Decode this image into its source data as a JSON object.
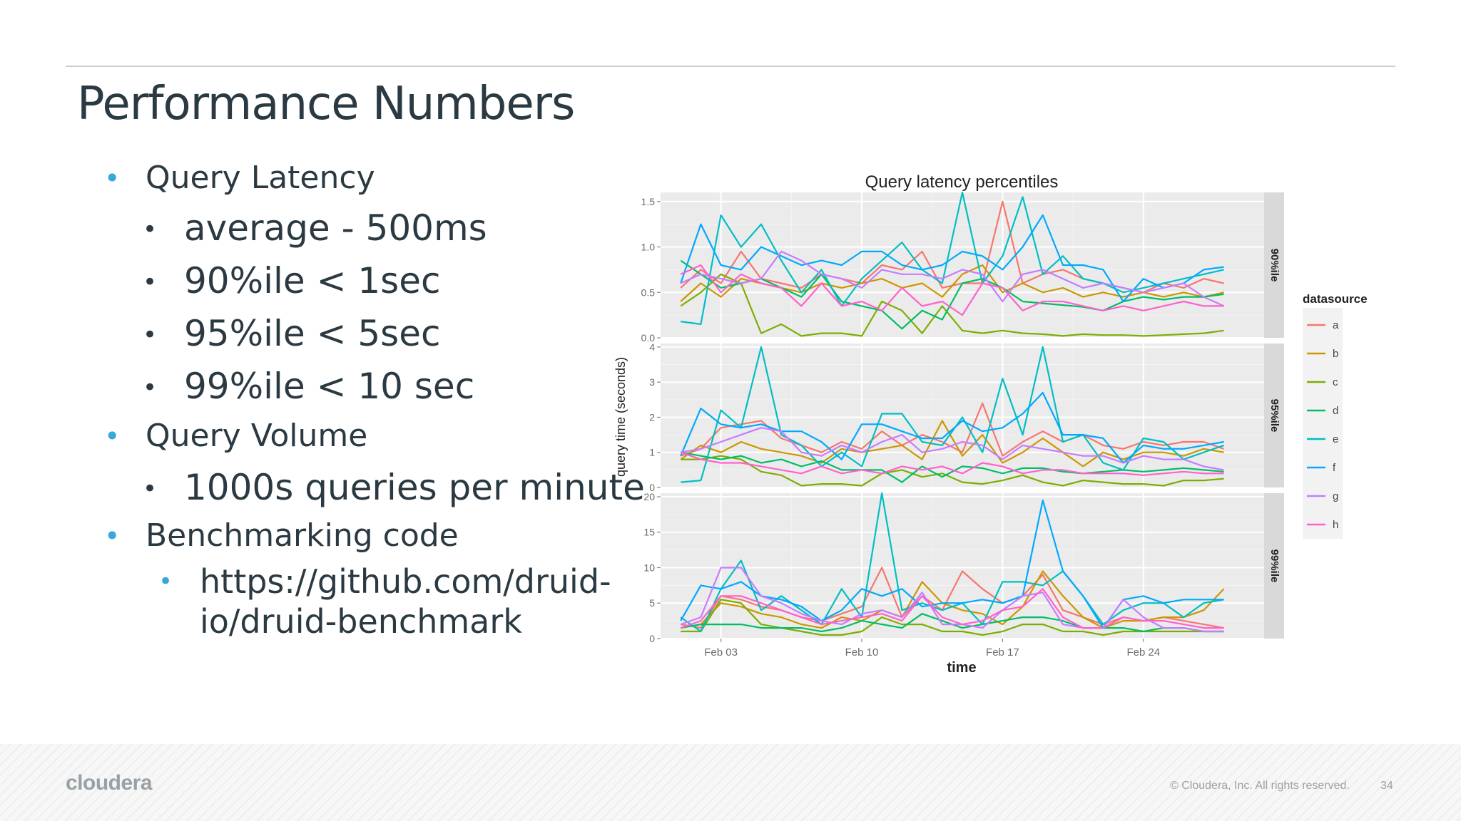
{
  "slide": {
    "title": "Performance Numbers",
    "bullets": [
      {
        "level": 1,
        "text": "Query Latency"
      },
      {
        "level": 2,
        "text": "average - 500ms"
      },
      {
        "level": 2,
        "text": "90%ile  < 1sec"
      },
      {
        "level": 2,
        "text": "95%ile < 5sec"
      },
      {
        "level": 2,
        "text": "99%ile < 10 sec"
      },
      {
        "level": 1,
        "text": "Query Volume"
      },
      {
        "level": 2,
        "text": "1000s queries per minute"
      },
      {
        "level": 1,
        "text": "Benchmarking code"
      },
      {
        "level": 3,
        "text": "https://github.com/druid-"
      },
      {
        "level": 3,
        "text": "io/druid-benchmark"
      }
    ],
    "footer": {
      "logo": "cloudera",
      "copyright": "© Cloudera, Inc. All rights reserved.",
      "page_number": "34"
    }
  },
  "chart_data": {
    "type": "line",
    "title": "Query latency percentiles",
    "xlabel": "time",
    "ylabel": "query time (seconds)",
    "x_tick_labels": [
      "Feb 03",
      "Feb 10",
      "Feb 17",
      "Feb 24"
    ],
    "x_tick_days": [
      3,
      10,
      17,
      24
    ],
    "xlim_days": [
      0,
      30
    ],
    "x": [
      1,
      2,
      3,
      4,
      5,
      6,
      7,
      8,
      9,
      10,
      11,
      12,
      13,
      14,
      15,
      16,
      17,
      18,
      19,
      20,
      21,
      22,
      23,
      24,
      25,
      26,
      27,
      28
    ],
    "legend": {
      "title": "datasource",
      "position": "right",
      "entries": [
        "a",
        "b",
        "c",
        "d",
        "e",
        "f",
        "g",
        "h"
      ]
    },
    "colors": {
      "a": "#f8766d",
      "b": "#cd9600",
      "c": "#7cae00",
      "d": "#00be67",
      "e": "#00bfc4",
      "f": "#00a9ff",
      "g": "#c77cff",
      "h": "#ff61cc"
    },
    "panel_bg": "#ebebeb",
    "strip_bg": "#d9d9d9",
    "facets": [
      {
        "label": "90%ile",
        "ylim": [
          0,
          1.6
        ],
        "yticks": [
          0.0,
          0.5,
          1.0,
          1.5
        ],
        "ytick_labels": [
          "0.0",
          "0.5",
          "1.0",
          "1.5"
        ],
        "series": [
          {
            "name": "a",
            "values": [
              0.55,
              0.75,
              0.6,
              0.95,
              0.65,
              0.6,
              0.55,
              0.7,
              0.65,
              0.6,
              0.8,
              0.75,
              0.95,
              0.55,
              0.6,
              0.6,
              1.5,
              0.6,
              0.7,
              0.75,
              0.65,
              0.6,
              0.55,
              0.5,
              0.6,
              0.55,
              0.65,
              0.6
            ]
          },
          {
            "name": "b",
            "values": [
              0.4,
              0.6,
              0.45,
              0.65,
              0.6,
              0.55,
              0.5,
              0.6,
              0.55,
              0.6,
              0.65,
              0.55,
              0.6,
              0.45,
              0.7,
              0.8,
              0.5,
              0.6,
              0.5,
              0.55,
              0.45,
              0.5,
              0.45,
              0.5,
              0.45,
              0.5,
              0.45,
              0.5
            ]
          },
          {
            "name": "c",
            "values": [
              0.35,
              0.5,
              0.7,
              0.6,
              0.05,
              0.15,
              0.02,
              0.05,
              0.05,
              0.02,
              0.4,
              0.3,
              0.05,
              0.35,
              0.08,
              0.05,
              0.08,
              0.05,
              0.04,
              0.02,
              0.04,
              0.03,
              0.03,
              0.02,
              0.03,
              0.04,
              0.05,
              0.08
            ]
          },
          {
            "name": "d",
            "values": [
              0.85,
              0.7,
              0.55,
              0.6,
              0.65,
              0.55,
              0.45,
              0.7,
              0.4,
              0.35,
              0.3,
              0.1,
              0.3,
              0.2,
              0.6,
              0.65,
              0.55,
              0.4,
              0.38,
              0.36,
              0.34,
              0.3,
              0.4,
              0.45,
              0.42,
              0.45,
              0.45,
              0.48
            ]
          },
          {
            "name": "e",
            "values": [
              0.18,
              0.15,
              1.35,
              1.0,
              1.25,
              0.85,
              0.5,
              0.75,
              0.35,
              0.65,
              0.85,
              1.05,
              0.75,
              0.6,
              1.6,
              0.6,
              0.9,
              1.55,
              0.7,
              0.9,
              0.65,
              0.6,
              0.5,
              0.55,
              0.6,
              0.65,
              0.7,
              0.75
            ]
          },
          {
            "name": "f",
            "values": [
              0.6,
              1.25,
              0.8,
              0.75,
              1.0,
              0.9,
              0.8,
              0.85,
              0.8,
              0.95,
              0.95,
              0.8,
              0.75,
              0.8,
              0.95,
              0.9,
              0.75,
              1.0,
              1.35,
              0.8,
              0.8,
              0.75,
              0.4,
              0.65,
              0.55,
              0.6,
              0.75,
              0.78
            ]
          },
          {
            "name": "g",
            "values": [
              0.6,
              0.7,
              0.65,
              0.6,
              0.65,
              0.95,
              0.85,
              0.7,
              0.65,
              0.55,
              0.75,
              0.7,
              0.7,
              0.65,
              0.75,
              0.7,
              0.4,
              0.7,
              0.75,
              0.65,
              0.55,
              0.6,
              0.55,
              0.5,
              0.55,
              0.6,
              0.45,
              0.35
            ]
          },
          {
            "name": "h",
            "values": [
              0.7,
              0.8,
              0.5,
              0.7,
              0.6,
              0.55,
              0.35,
              0.6,
              0.35,
              0.4,
              0.3,
              0.55,
              0.35,
              0.4,
              0.25,
              0.6,
              0.55,
              0.3,
              0.4,
              0.4,
              0.35,
              0.3,
              0.35,
              0.3,
              0.35,
              0.4,
              0.35,
              0.35
            ]
          }
        ]
      },
      {
        "label": "95%ile",
        "ylim": [
          0,
          4.1
        ],
        "yticks": [
          0,
          1,
          2,
          3,
          4
        ],
        "ytick_labels": [
          "0",
          "1",
          "2",
          "3",
          "4"
        ],
        "series": [
          {
            "name": "a",
            "values": [
              0.9,
              1.1,
              1.7,
              1.8,
              1.9,
              1.4,
              1.2,
              1.0,
              1.3,
              1.1,
              1.6,
              1.2,
              1.5,
              1.3,
              1.0,
              2.4,
              0.9,
              1.3,
              1.6,
              1.3,
              1.5,
              1.2,
              1.1,
              1.3,
              1.2,
              1.3,
              1.3,
              1.1
            ]
          },
          {
            "name": "b",
            "values": [
              0.8,
              1.2,
              1.0,
              1.3,
              1.1,
              1.0,
              0.9,
              0.7,
              1.1,
              1.0,
              1.1,
              1.2,
              0.8,
              1.9,
              0.9,
              1.5,
              0.7,
              1.0,
              1.4,
              1.0,
              0.6,
              1.0,
              0.8,
              1.0,
              1.0,
              0.9,
              1.1,
              1.0
            ]
          },
          {
            "name": "c",
            "values": [
              0.8,
              0.8,
              0.9,
              0.8,
              0.45,
              0.35,
              0.05,
              0.1,
              0.1,
              0.05,
              0.4,
              0.5,
              0.3,
              0.4,
              0.15,
              0.1,
              0.2,
              0.35,
              0.15,
              0.05,
              0.2,
              0.15,
              0.1,
              0.1,
              0.05,
              0.2,
              0.2,
              0.25
            ]
          },
          {
            "name": "d",
            "values": [
              1.0,
              0.9,
              0.8,
              0.9,
              0.7,
              0.8,
              0.6,
              0.75,
              0.5,
              0.5,
              0.5,
              0.15,
              0.6,
              0.3,
              0.6,
              0.55,
              0.4,
              0.55,
              0.55,
              0.45,
              0.4,
              0.45,
              0.5,
              0.45,
              0.5,
              0.55,
              0.5,
              0.45
            ]
          },
          {
            "name": "e",
            "values": [
              0.15,
              0.2,
              2.2,
              1.7,
              4.0,
              1.5,
              1.2,
              0.6,
              1.0,
              0.6,
              2.1,
              2.1,
              1.3,
              1.2,
              2.0,
              1.0,
              3.1,
              1.5,
              4.0,
              1.3,
              1.5,
              0.7,
              0.5,
              1.4,
              1.3,
              0.8,
              1.0,
              1.2
            ]
          },
          {
            "name": "f",
            "values": [
              0.9,
              2.25,
              1.8,
              1.7,
              1.8,
              1.6,
              1.6,
              1.3,
              0.8,
              1.8,
              1.8,
              1.6,
              1.4,
              1.4,
              1.9,
              1.6,
              1.7,
              2.1,
              2.7,
              1.5,
              1.5,
              1.4,
              0.7,
              1.2,
              1.1,
              1.1,
              1.2,
              1.3
            ]
          },
          {
            "name": "g",
            "values": [
              1.0,
              1.1,
              1.3,
              1.5,
              1.7,
              1.6,
              1.0,
              0.9,
              1.2,
              1.0,
              1.3,
              1.5,
              1.0,
              1.1,
              1.3,
              1.2,
              0.8,
              1.2,
              1.1,
              1.0,
              0.9,
              0.9,
              0.7,
              0.9,
              0.8,
              0.8,
              0.6,
              0.5
            ]
          },
          {
            "name": "h",
            "values": [
              1.0,
              0.8,
              0.7,
              0.7,
              0.6,
              0.5,
              0.4,
              0.6,
              0.4,
              0.5,
              0.4,
              0.6,
              0.5,
              0.6,
              0.4,
              0.7,
              0.6,
              0.4,
              0.5,
              0.5,
              0.4,
              0.4,
              0.4,
              0.35,
              0.4,
              0.45,
              0.4,
              0.4
            ]
          }
        ]
      },
      {
        "label": "99%ile",
        "ylim": [
          0,
          20.5
        ],
        "yticks": [
          0,
          5,
          10,
          15,
          20
        ],
        "ytick_labels": [
          "0",
          "5",
          "10",
          "15",
          "20"
        ],
        "series": [
          {
            "name": "a",
            "values": [
              2.0,
              1.5,
              6.0,
              5.5,
              4.5,
              4.0,
              3.0,
              2.5,
              3.5,
              4.5,
              10.0,
              3.0,
              6.0,
              4.0,
              9.5,
              7.0,
              5.0,
              6.0,
              9.0,
              4.0,
              3.0,
              2.0,
              3.0,
              2.5,
              3.0,
              2.5,
              2.0,
              1.5
            ]
          },
          {
            "name": "b",
            "values": [
              1.5,
              2.0,
              5.0,
              4.5,
              3.5,
              3.0,
              2.0,
              1.5,
              3.0,
              2.5,
              4.0,
              3.0,
              8.0,
              5.0,
              4.0,
              3.5,
              2.0,
              4.5,
              9.5,
              6.0,
              3.0,
              1.5,
              2.5,
              2.5,
              3.0,
              3.0,
              4.0,
              7.0
            ]
          },
          {
            "name": "c",
            "values": [
              1.0,
              1.0,
              5.5,
              5.0,
              2.0,
              1.5,
              1.0,
              0.5,
              0.5,
              1.0,
              3.0,
              2.0,
              2.0,
              1.0,
              1.0,
              0.5,
              1.0,
              2.0,
              2.0,
              1.0,
              1.0,
              0.5,
              1.0,
              1.0,
              1.0,
              1.0,
              1.0,
              1.0
            ]
          },
          {
            "name": "d",
            "values": [
              1.5,
              2.0,
              2.0,
              2.0,
              1.5,
              1.5,
              1.5,
              1.0,
              1.5,
              2.5,
              2.0,
              1.5,
              3.5,
              2.5,
              1.5,
              2.0,
              2.5,
              3.0,
              3.0,
              2.5,
              1.5,
              1.5,
              1.5,
              1.0,
              1.5,
              1.5,
              1.0,
              1.0
            ]
          },
          {
            "name": "e",
            "values": [
              3.0,
              1.0,
              7.0,
              11.0,
              4.0,
              6.0,
              4.0,
              2.0,
              7.0,
              3.0,
              20.5,
              4.0,
              5.0,
              4.0,
              5.0,
              2.0,
              8.0,
              8.0,
              7.5,
              9.5,
              6.0,
              2.0,
              4.0,
              5.0,
              5.0,
              3.0,
              5.0,
              5.5
            ]
          },
          {
            "name": "f",
            "values": [
              2.5,
              7.5,
              7.0,
              8.0,
              6.0,
              5.5,
              4.5,
              2.5,
              4.0,
              7.0,
              6.0,
              7.0,
              4.5,
              5.0,
              5.0,
              5.5,
              5.0,
              6.0,
              19.5,
              9.5,
              6.0,
              1.5,
              5.5,
              6.0,
              5.0,
              5.5,
              5.5,
              5.5
            ]
          },
          {
            "name": "g",
            "values": [
              2.0,
              3.0,
              10.0,
              10.0,
              6.0,
              5.0,
              3.5,
              2.5,
              2.0,
              3.5,
              4.0,
              3.0,
              6.5,
              2.0,
              2.0,
              1.5,
              4.0,
              6.0,
              6.5,
              2.0,
              1.5,
              1.5,
              5.5,
              3.0,
              1.5,
              1.5,
              1.0,
              1.0
            ]
          },
          {
            "name": "h",
            "values": [
              1.5,
              2.5,
              6.0,
              6.0,
              5.0,
              4.0,
              3.0,
              2.0,
              2.5,
              3.0,
              3.5,
              2.5,
              6.0,
              3.0,
              2.0,
              2.5,
              4.0,
              4.5,
              7.0,
              3.0,
              1.5,
              1.5,
              3.0,
              2.5,
              2.5,
              2.0,
              1.5,
              1.5
            ]
          }
        ]
      }
    ]
  }
}
